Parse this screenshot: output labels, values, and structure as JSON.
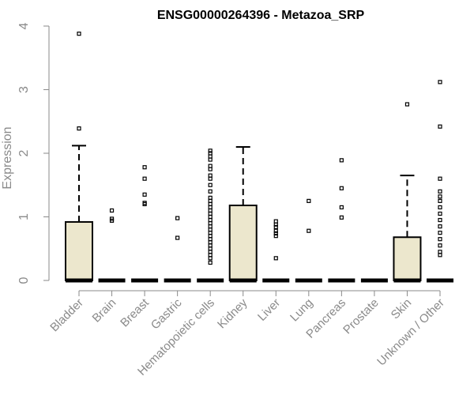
{
  "chart_data": {
    "type": "box",
    "title": "ENSG00000264396 - Metazoa_SRP",
    "xlabel": "",
    "ylabel": "Expression",
    "ylim": [
      0,
      4
    ],
    "yticks": [
      "0",
      "1",
      "2",
      "3",
      "4"
    ],
    "categories": [
      "Bladder",
      "Brain",
      "Breast",
      "Gastric",
      "Hematopoietic cells",
      "Kidney",
      "Liver",
      "Lung",
      "Pancreas",
      "Prostate",
      "Skin",
      "Unknown / Other"
    ],
    "box_color": "#ece7cd",
    "boxes": [
      {
        "category": "Bladder",
        "q1": 0,
        "median": 0,
        "q3": 0.92,
        "whisker_low": 0,
        "whisker_high": 2.12,
        "outliers": [
          2.39,
          3.88
        ]
      },
      {
        "category": "Brain",
        "q1": 0,
        "median": 0,
        "q3": 0,
        "whisker_low": 0,
        "whisker_high": 0,
        "outliers": [
          0.94,
          0.97,
          1.1
        ]
      },
      {
        "category": "Breast",
        "q1": 0,
        "median": 0,
        "q3": 0,
        "whisker_low": 0,
        "whisker_high": 0,
        "outliers": [
          1.2,
          1.22,
          1.35,
          1.6,
          1.78
        ]
      },
      {
        "category": "Gastric",
        "q1": 0,
        "median": 0,
        "q3": 0,
        "whisker_low": 0,
        "whisker_high": 0,
        "outliers": [
          0.67,
          0.98
        ]
      },
      {
        "category": "Hematopoietic cells",
        "q1": 0,
        "median": 0,
        "q3": 0,
        "whisker_low": 0,
        "whisker_high": 0,
        "outliers": [
          0.28,
          0.35,
          0.4,
          0.45,
          0.5,
          0.55,
          0.6,
          0.65,
          0.7,
          0.75,
          0.8,
          0.85,
          0.9,
          0.95,
          1.0,
          1.05,
          1.1,
          1.15,
          1.2,
          1.25,
          1.3,
          1.4,
          1.5,
          1.6,
          1.65,
          1.75,
          1.8,
          1.9,
          1.95,
          2.0,
          2.04
        ]
      },
      {
        "category": "Kidney",
        "q1": 0,
        "median": 0,
        "q3": 1.18,
        "whisker_low": 0,
        "whisker_high": 2.1,
        "outliers": []
      },
      {
        "category": "Liver",
        "q1": 0,
        "median": 0,
        "q3": 0,
        "whisker_low": 0,
        "whisker_high": 0,
        "outliers": [
          0.35,
          0.7,
          0.74,
          0.78,
          0.84,
          0.88,
          0.93
        ]
      },
      {
        "category": "Lung",
        "q1": 0,
        "median": 0,
        "q3": 0,
        "whisker_low": 0,
        "whisker_high": 0,
        "outliers": [
          0.78,
          1.25
        ]
      },
      {
        "category": "Pancreas",
        "q1": 0,
        "median": 0,
        "q3": 0,
        "whisker_low": 0,
        "whisker_high": 0,
        "outliers": [
          0.99,
          1.15,
          1.45,
          1.89
        ]
      },
      {
        "category": "Prostate",
        "q1": 0,
        "median": 0,
        "q3": 0,
        "whisker_low": 0,
        "whisker_high": 0,
        "outliers": []
      },
      {
        "category": "Skin",
        "q1": 0,
        "median": 0,
        "q3": 0.68,
        "whisker_low": 0,
        "whisker_high": 1.65,
        "outliers": [
          2.77
        ]
      },
      {
        "category": "Unknown / Other",
        "q1": 0,
        "median": 0,
        "q3": 0,
        "whisker_low": 0,
        "whisker_high": 0,
        "outliers": [
          0.4,
          0.45,
          0.55,
          0.65,
          0.75,
          0.85,
          0.95,
          1.05,
          1.15,
          1.25,
          1.32,
          1.4,
          1.6,
          2.42,
          3.12
        ]
      }
    ]
  }
}
